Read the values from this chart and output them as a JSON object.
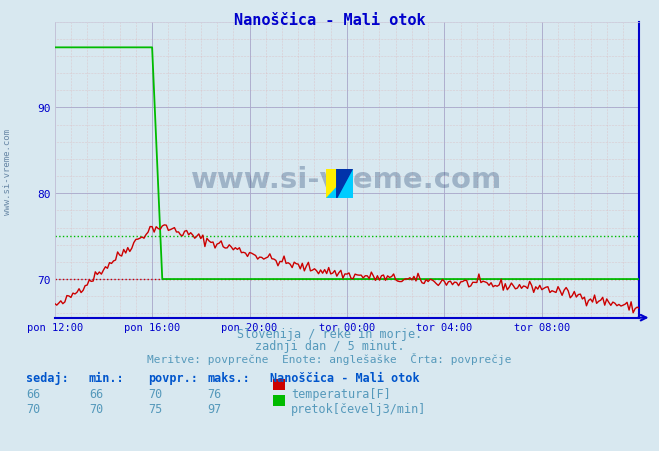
{
  "title": "Nanoščica - Mali otok",
  "bg_color": "#d8e8f0",
  "plot_bg_color": "#d8e8f0",
  "x_start": 0,
  "x_end": 288,
  "x_tick_positions": [
    0,
    48,
    96,
    144,
    192,
    240,
    288
  ],
  "x_tick_labels": [
    "pon 12:00",
    "pon 16:00",
    "pon 20:00",
    "tor 00:00",
    "tor 04:00",
    "tor 08:00",
    ""
  ],
  "y_min": 65.5,
  "y_max": 100,
  "y_ticks": [
    70,
    80,
    90
  ],
  "temp_avg": 70,
  "flow_avg": 75,
  "temp_color": "#cc0000",
  "flow_color": "#00bb00",
  "subtitle1": "Slovenija / reke in morje.",
  "subtitle2": "zadnji dan / 5 minut.",
  "subtitle3": "Meritve: povprečne  Enote: anglešaške  Črta: povprečje",
  "legend_title": "Nanoščica - Mali otok",
  "table_headers": [
    "sedaj:",
    "min.:",
    "povpr.:",
    "maks.:"
  ],
  "temp_row": [
    66,
    66,
    70,
    76
  ],
  "flow_row": [
    70,
    70,
    75,
    97
  ],
  "temp_label": "temperatura[F]",
  "flow_label": "pretok[čevelj3/min]",
  "text_color": "#5599bb",
  "title_color": "#0000cc",
  "label_bold_color": "#0055cc"
}
